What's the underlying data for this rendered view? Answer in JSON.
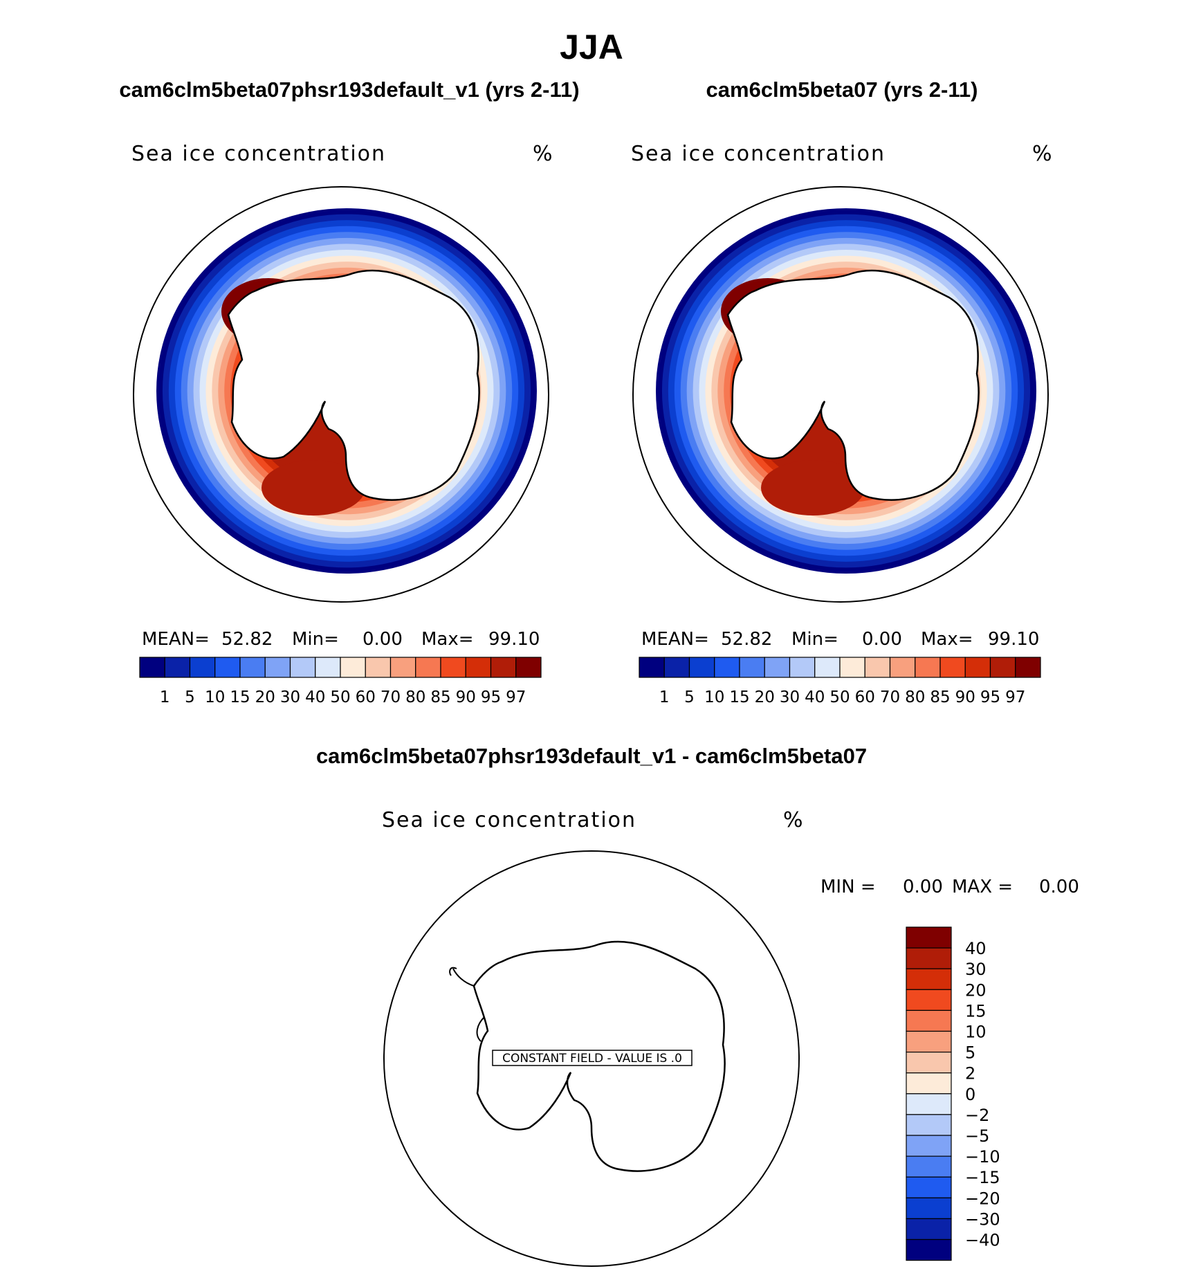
{
  "page": {
    "season": "JJA",
    "left_title": "cam6clm5beta07phsr193default_v1 (yrs 2-11)",
    "right_title": "cam6clm5beta07 (yrs 2-11)",
    "diff_title": "cam6clm5beta07phsr193default_v1 - cam6clm5beta07"
  },
  "chart_data": [
    {
      "type": "heatmap",
      "projection": "south-polar-stereographic",
      "variable": "Sea ice concentration",
      "units": "%",
      "stats": {
        "mean_label": "MEAN=",
        "mean": "52.82",
        "min_label": "Min=",
        "min": "0.00",
        "max_label": "Max=",
        "max": "99.10"
      },
      "levels": [
        "1",
        "5",
        "10",
        "15",
        "20",
        "30",
        "40",
        "50",
        "60",
        "70",
        "80",
        "85",
        "90",
        "95",
        "97"
      ],
      "colors": [
        "#00007f",
        "#0a22a8",
        "#0b3fd0",
        "#1f5bf0",
        "#4a7df2",
        "#7fa3f6",
        "#b3c9f8",
        "#dde9fa",
        "#fdebd9",
        "#f9c7ad",
        "#f8a07e",
        "#f67852",
        "#f04a1f",
        "#d42e08",
        "#b01d08",
        "#7f0000"
      ]
    },
    {
      "type": "heatmap",
      "projection": "south-polar-stereographic",
      "variable": "Sea ice concentration",
      "units": "%",
      "stats": {
        "mean_label": "MEAN=",
        "mean": "52.82",
        "min_label": "Min=",
        "min": "0.00",
        "max_label": "Max=",
        "max": "99.10"
      },
      "levels": [
        "1",
        "5",
        "10",
        "15",
        "20",
        "30",
        "40",
        "50",
        "60",
        "70",
        "80",
        "85",
        "90",
        "95",
        "97"
      ],
      "colors": [
        "#00007f",
        "#0a22a8",
        "#0b3fd0",
        "#1f5bf0",
        "#4a7df2",
        "#7fa3f6",
        "#b3c9f8",
        "#dde9fa",
        "#fdebd9",
        "#f9c7ad",
        "#f8a07e",
        "#f67852",
        "#f04a1f",
        "#d42e08",
        "#b01d08",
        "#7f0000"
      ]
    },
    {
      "type": "heatmap",
      "projection": "south-polar-stereographic",
      "variable": "Sea ice concentration",
      "units": "%",
      "stats": {
        "min_label": "MIN =",
        "min": "0.00",
        "max_label": "MAX =",
        "max": "0.00"
      },
      "constant_field_label": "CONSTANT FIELD - VALUE IS .0",
      "levels": [
        "40",
        "30",
        "20",
        "15",
        "10",
        "5",
        "2",
        "0",
        "−2",
        "−5",
        "−10",
        "−15",
        "−20",
        "−30",
        "−40"
      ],
      "colors": [
        "#7f0000",
        "#b01d08",
        "#d42e08",
        "#f04a1f",
        "#f67852",
        "#f8a07e",
        "#f9c7ad",
        "#fdebd9",
        "#dde9fa",
        "#b3c9f8",
        "#7fa3f6",
        "#4a7df2",
        "#1f5bf0",
        "#0b3fd0",
        "#0a22a8",
        "#00007f"
      ]
    }
  ]
}
